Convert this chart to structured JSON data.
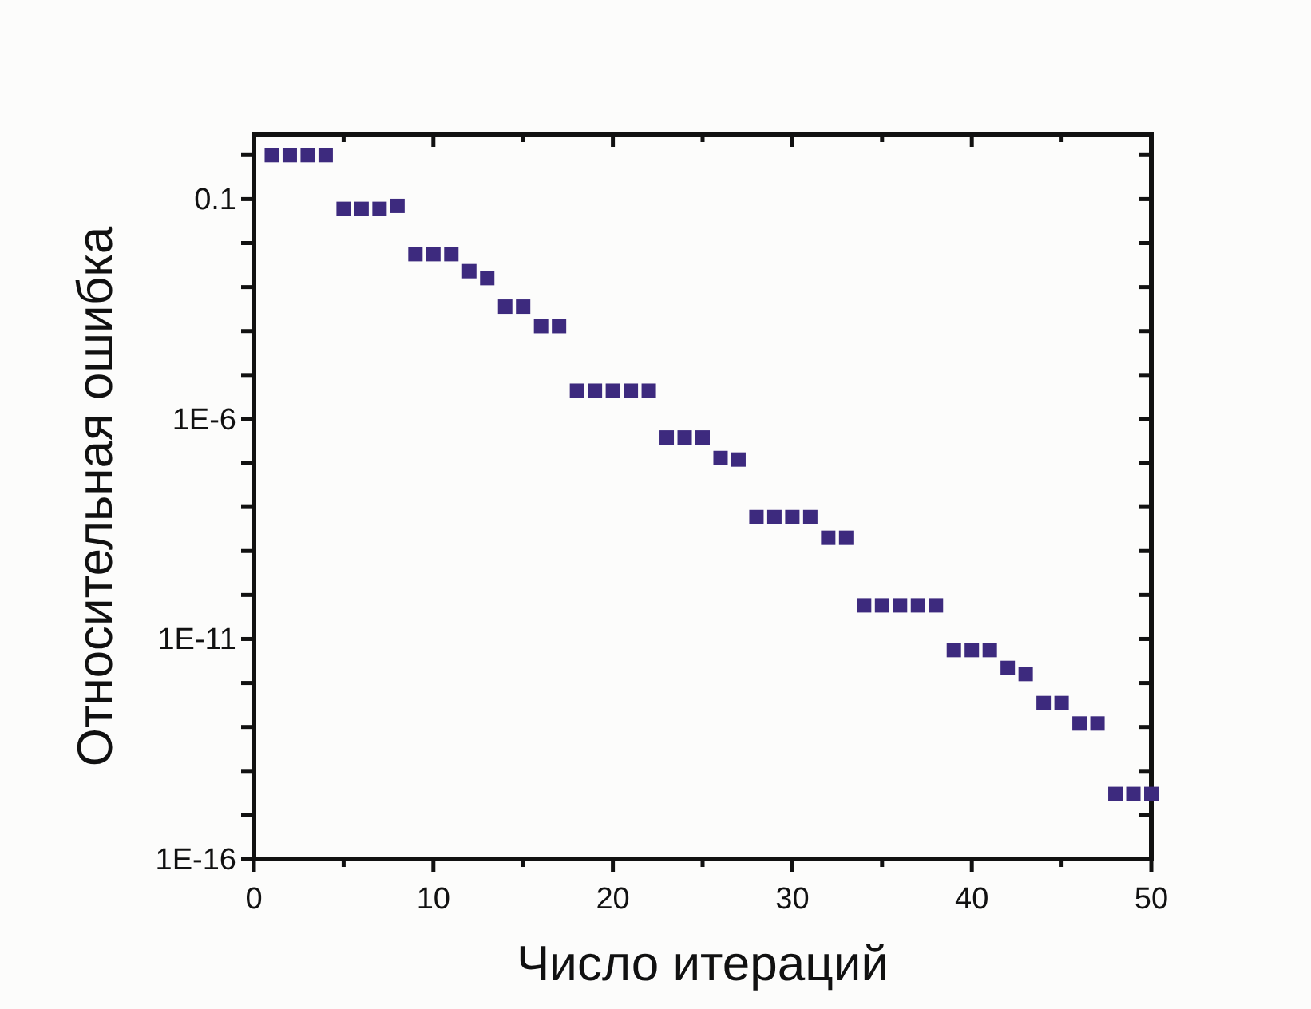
{
  "chart_data": {
    "type": "scatter",
    "xlabel": "Число итераций",
    "ylabel": "Относительная ошибка",
    "log": "y",
    "marker": "square",
    "grid": false,
    "x": [
      1,
      2,
      3,
      4,
      5,
      6,
      7,
      8,
      9,
      10,
      11,
      12,
      13,
      14,
      15,
      16,
      17,
      18,
      19,
      20,
      21,
      22,
      23,
      24,
      25,
      26,
      27,
      28,
      29,
      30,
      31,
      32,
      33,
      34,
      35,
      36,
      37,
      38,
      39,
      40,
      41,
      42,
      43,
      44,
      45,
      46,
      47,
      48,
      49,
      50
    ],
    "series": [
      {
        "color": "#3d2a7e",
        "values": [
          1,
          1,
          1,
          1,
          0.06,
          0.06,
          0.06,
          0.07,
          0.0056,
          0.0056,
          0.0056,
          0.0023,
          0.0016,
          0.00036,
          0.00036,
          0.00013,
          0.00013,
          4.4e-06,
          4.4e-06,
          4.4e-06,
          4.4e-06,
          4.4e-06,
          3.8e-07,
          3.8e-07,
          3.8e-07,
          1.3e-07,
          1.2e-07,
          5.9e-09,
          5.9e-09,
          5.9e-09,
          5.9e-09,
          2e-09,
          2e-09,
          5.8e-11,
          5.8e-11,
          5.8e-11,
          5.8e-11,
          5.8e-11,
          5.6e-12,
          5.6e-12,
          5.6e-12,
          2.2e-12,
          1.6e-12,
          3.5e-13,
          3.5e-13,
          1.2e-13,
          1.2e-13,
          3e-15,
          3e-15,
          3e-15
        ]
      }
    ],
    "xlim": [
      0,
      50
    ],
    "xticks": [
      0,
      {
        "value": 5,
        "label": null
      },
      10,
      {
        "value": 15,
        "label": null
      },
      20,
      {
        "value": 25,
        "label": null
      },
      30,
      {
        "value": 35,
        "label": null
      },
      40,
      {
        "value": 45,
        "label": null
      },
      50
    ],
    "ylim": [
      1e-16,
      3
    ],
    "yticks": [
      {
        "value": 1,
        "label": null
      },
      0.1,
      {
        "value": 0.01,
        "label": null
      },
      {
        "value": 0.001,
        "label": null
      },
      {
        "value": 0.0001,
        "label": null
      },
      {
        "value": 1e-05,
        "label": null
      },
      {
        "value": 1e-06,
        "label": "1E-6"
      },
      {
        "value": 1e-07,
        "label": null
      },
      {
        "value": 1e-08,
        "label": null
      },
      {
        "value": 1e-09,
        "label": null
      },
      {
        "value": 1e-10,
        "label": null
      },
      {
        "value": 1e-11,
        "label": "1E-11"
      },
      {
        "value": 1e-12,
        "label": null
      },
      {
        "value": 1e-13,
        "label": null
      },
      {
        "value": 1e-14,
        "label": null
      },
      {
        "value": 1e-15,
        "label": null
      },
      {
        "value": 1e-16,
        "label": "1E-16"
      }
    ]
  }
}
